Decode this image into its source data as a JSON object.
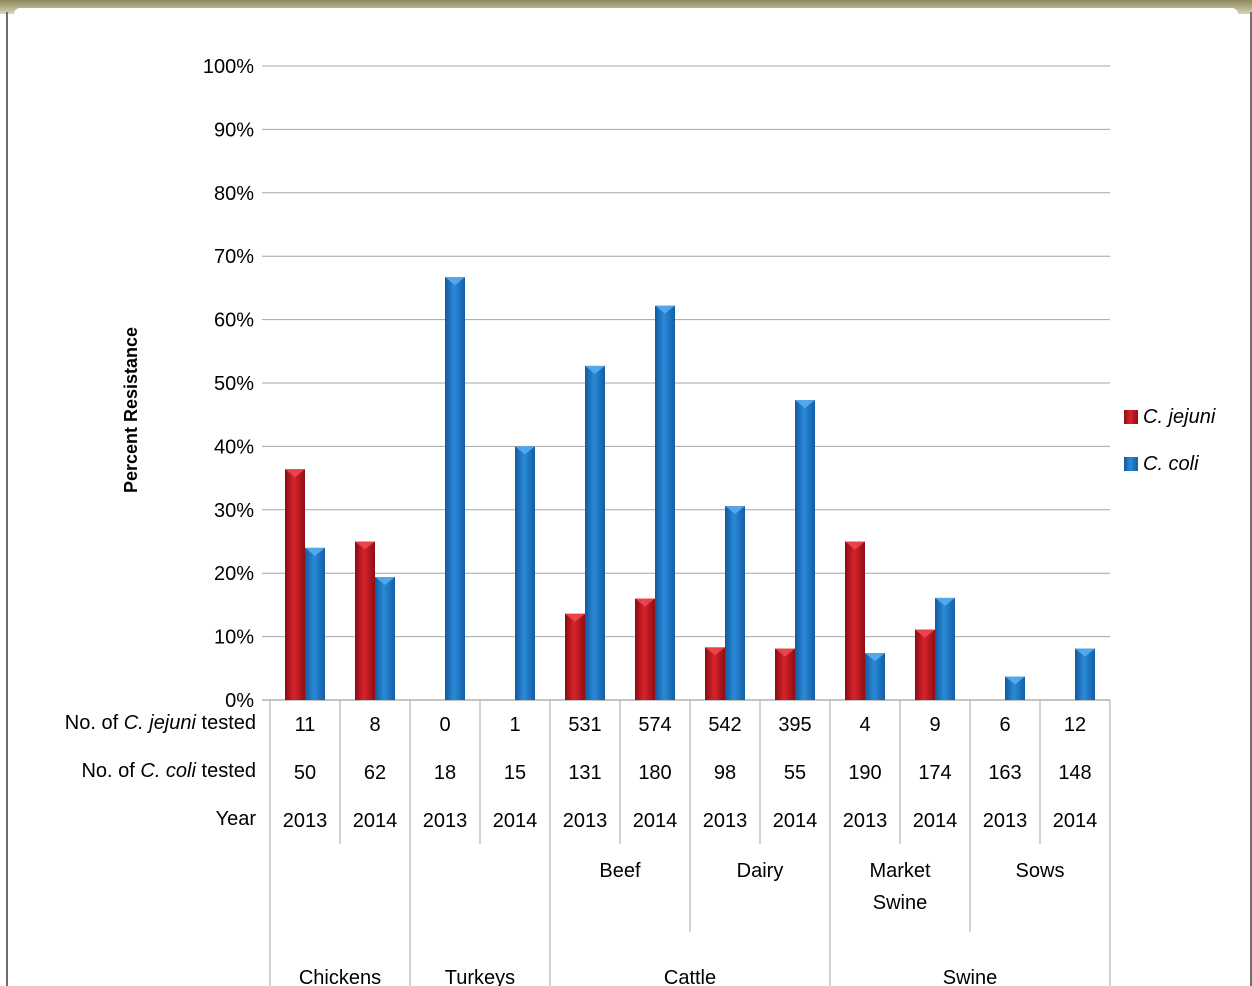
{
  "chart_data": {
    "type": "bar",
    "ylabel": "Percent Resistance",
    "ylim": [
      0,
      100
    ],
    "y_ticks": [
      "0%",
      "10%",
      "20%",
      "30%",
      "40%",
      "50%",
      "60%",
      "70%",
      "80%",
      "90%",
      "100%"
    ],
    "legend_position": "right",
    "grid": true,
    "categories": [
      "2013",
      "2014",
      "2013",
      "2014",
      "2013",
      "2014",
      "2013",
      "2014",
      "2013",
      "2014",
      "2013",
      "2014"
    ],
    "series": [
      {
        "name": "C. jejuni",
        "color": "#c0181f",
        "values": [
          36.4,
          25.0,
          null,
          null,
          13.6,
          16.0,
          8.3,
          8.1,
          25.0,
          11.1,
          null,
          null
        ]
      },
      {
        "name": "C. coli",
        "color": "#1e78c8",
        "values": [
          24.0,
          19.4,
          66.7,
          40.0,
          52.7,
          62.2,
          30.6,
          47.3,
          7.4,
          16.1,
          3.7,
          8.1
        ]
      }
    ],
    "table": {
      "rows": [
        {
          "label_pre": "No. of ",
          "label_italic": "C. jejuni",
          "label_post": " tested",
          "values": [
            "11",
            "8",
            "0",
            "1",
            "531",
            "574",
            "542",
            "395",
            "4",
            "9",
            "6",
            "12"
          ]
        },
        {
          "label_pre": "No. of ",
          "label_italic": "C. coli",
          "label_post": " tested",
          "values": [
            "50",
            "62",
            "18",
            "15",
            "131",
            "180",
            "98",
            "55",
            "190",
            "174",
            "163",
            "148"
          ]
        },
        {
          "label_pre": "Year",
          "label_italic": "",
          "label_post": "",
          "values": [
            "2013",
            "2014",
            "2013",
            "2014",
            "2013",
            "2014",
            "2013",
            "2014",
            "2013",
            "2014",
            "2013",
            "2014"
          ]
        }
      ],
      "subgroups": [
        {
          "lines": [
            ""
          ],
          "span": [
            0,
            2
          ]
        },
        {
          "lines": [
            ""
          ],
          "span": [
            2,
            4
          ]
        },
        {
          "lines": [
            "Beef"
          ],
          "span": [
            4,
            6
          ]
        },
        {
          "lines": [
            "Dairy"
          ],
          "span": [
            6,
            8
          ]
        },
        {
          "lines": [
            "Market",
            "Swine"
          ],
          "span": [
            8,
            10
          ]
        },
        {
          "lines": [
            "Sows"
          ],
          "span": [
            10,
            12
          ]
        }
      ],
      "groups": [
        {
          "label": "Chickens",
          "span": [
            0,
            2
          ]
        },
        {
          "label": "Turkeys",
          "span": [
            2,
            4
          ]
        },
        {
          "label": "Cattle",
          "span": [
            4,
            8
          ]
        },
        {
          "label": "Swine",
          "span": [
            8,
            12
          ]
        }
      ]
    }
  }
}
